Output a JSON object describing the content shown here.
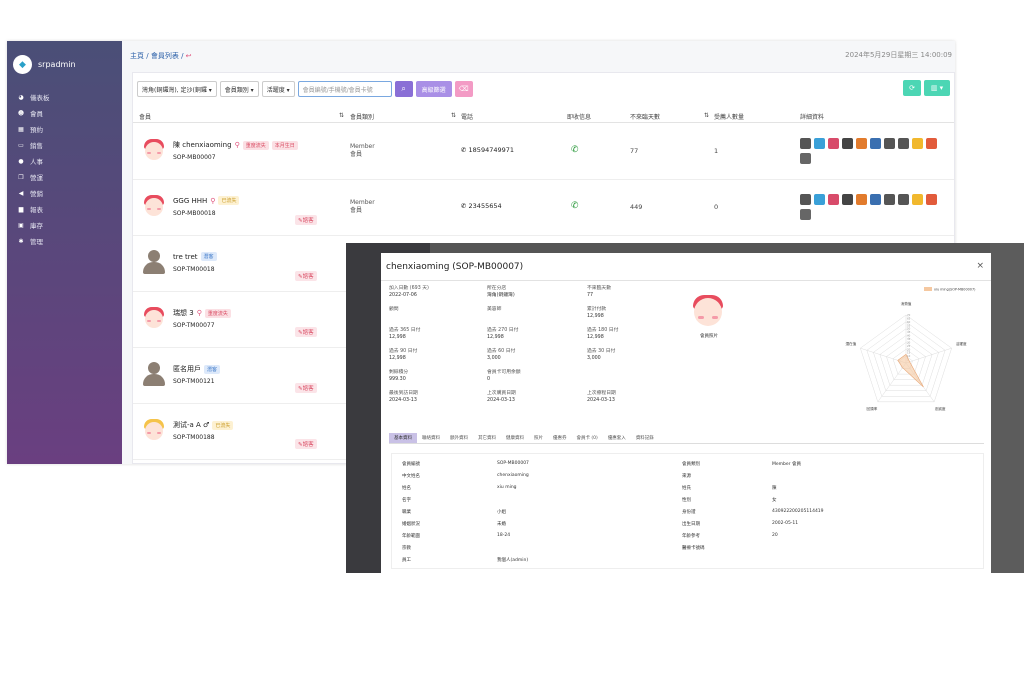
{
  "app": {
    "name": "srpadmin"
  },
  "sidebar": {
    "items": [
      {
        "label": "儀表板",
        "icon": "dashboard-icon"
      },
      {
        "label": "會員",
        "icon": "users-icon"
      },
      {
        "label": "預約",
        "icon": "calendar-icon"
      },
      {
        "label": "銷售",
        "icon": "card-icon"
      },
      {
        "label": "人事",
        "icon": "person-icon"
      },
      {
        "label": "營運",
        "icon": "copy-icon"
      },
      {
        "label": "營銷",
        "icon": "megaphone-icon"
      },
      {
        "label": "報表",
        "icon": "chart-icon"
      },
      {
        "label": "庫存",
        "icon": "box-icon"
      },
      {
        "label": "管理",
        "icon": "gear-icon"
      }
    ]
  },
  "breadcrumb": {
    "home": "主頁",
    "sep1": "/",
    "page": "會員列表",
    "sep2": "/",
    "back_icon": "back-arrow-icon"
  },
  "datetime": "2024年5月29日星期三 14:00:09",
  "filters": {
    "branch": "灣角(銅鑼灣), 定沙(銅鑼 ▾",
    "type": "會員類別 ▾",
    "follow": "活躍度 ▾",
    "search_placeholder": "會員編號/手機號/會員卡號",
    "advanced": "高級篩選"
  },
  "table": {
    "headers": [
      "會員",
      "會員類別",
      "電話",
      "即收信息",
      "不來臨天數",
      "受薦人數量",
      "詳細資料"
    ]
  },
  "members": [
    {
      "name": "陳 chenxiaoming",
      "code": "SOP-MB00007",
      "avatar": "girl-red",
      "pin": true,
      "tags": [
        {
          "text": "重度流失",
          "c": "t-red"
        },
        {
          "text": "本月生日",
          "c": "t-red"
        }
      ],
      "type1": "Member",
      "type2": "會員",
      "phone": "18594749971",
      "days": "77",
      "ref": "1",
      "edit": "",
      "icons": true
    },
    {
      "name": "GGG HHH",
      "code": "SOP-MB00018",
      "avatar": "girl-red",
      "pin": true,
      "tags": [
        {
          "text": "已流失",
          "c": "t-yel"
        }
      ],
      "type1": "Member",
      "type2": "會員",
      "phone": "23455654",
      "days": "449",
      "ref": "0",
      "edit": "諮客",
      "icons": true
    },
    {
      "name": "tre tret",
      "code": "SOP-TM00018",
      "avatar": "grey",
      "pin": false,
      "tags": [
        {
          "text": "潛客",
          "c": "t-blue"
        }
      ],
      "type1": "",
      "type2": "",
      "phone": "",
      "days": "",
      "ref": "",
      "edit": "諮客",
      "icons": false
    },
    {
      "name": "瑞想 3",
      "code": "SOP-TM00077",
      "avatar": "girl-red",
      "pin": true,
      "tags": [
        {
          "text": "重度流失",
          "c": "t-red"
        }
      ],
      "type1": "",
      "type2": "",
      "phone": "",
      "days": "",
      "ref": "",
      "edit": "諮客",
      "icons": false
    },
    {
      "name": "匿名用戶",
      "code": "SOP-TM00121",
      "avatar": "grey",
      "pin": false,
      "tags": [
        {
          "text": "潛客",
          "c": "t-blue"
        }
      ],
      "type1": "",
      "type2": "",
      "phone": "",
      "days": "",
      "ref": "",
      "edit": "諮客",
      "icons": false
    },
    {
      "name": "測试-a A ♂",
      "code": "SOP-TM00188",
      "avatar": "boy-yellow",
      "pin": false,
      "tags": [
        {
          "text": "已流失",
          "c": "t-yel"
        }
      ],
      "type1": "",
      "type2": "",
      "phone": "",
      "days": "",
      "ref": "",
      "edit": "諮客",
      "icons": false
    }
  ],
  "modal": {
    "title": "chenxiaoming (SOP-MB00007)",
    "close": "×",
    "avatar_label": "會員照片",
    "stats": [
      [
        {
          "k": "加入日數 (693 天)",
          "v": "2022-07-06"
        },
        {
          "k": "所在分店",
          "v": "灣角(銅鑼灣)"
        },
        {
          "k": "不來臨天數",
          "v": "77"
        }
      ],
      [
        {
          "k": "顧問",
          "v": ""
        },
        {
          "k": "美容師",
          "v": ""
        },
        {
          "k": "累計付款",
          "v": "12,998"
        }
      ],
      [
        {
          "k": "過去 365 日付",
          "v": "12,998"
        },
        {
          "k": "過去 270 日付",
          "v": "12,998"
        },
        {
          "k": "過去 180 日付",
          "v": "12,998"
        }
      ],
      [
        {
          "k": "過去 90 日付",
          "v": "12,998"
        },
        {
          "k": "過去 60 日付",
          "v": "3,000"
        },
        {
          "k": "過去 30 日付",
          "v": "3,000"
        }
      ],
      [
        {
          "k": "剩餘積分",
          "v": "999.30"
        },
        {
          "k": "會員卡可用余額",
          "v": "0"
        },
        {
          "k": "",
          "v": ""
        }
      ],
      [
        {
          "k": "最後到訪日期",
          "v": "2024-03-13"
        },
        {
          "k": "上次購買日期",
          "v": "2024-03-13"
        },
        {
          "k": "上次療程日期",
          "v": "2024-03-13"
        }
      ]
    ],
    "tabs": [
      "基本資料",
      "聯絡資料",
      "額外資料",
      "其它資料",
      "健康資料",
      "照片",
      "優惠券",
      "會員卡 (0)",
      "優惠套入",
      "資料記錄"
    ],
    "details": [
      [
        "會員編號",
        "SOP-MB00007",
        "會員類別",
        "Member 會員"
      ],
      [
        "中文姓名",
        "chenxiaoming",
        "來源",
        ""
      ],
      [
        "姓名",
        "xiu ming",
        "姓氏",
        "陳"
      ],
      [
        "名字",
        "",
        "性別",
        "女"
      ],
      [
        "職業",
        "小姐",
        "身份證",
        "430922200205114419"
      ],
      [
        "婚姻狀況",
        "未婚",
        "出生日期",
        "2002-05-11"
      ],
      [
        "年齡範圍",
        "18-24",
        "年齡參考",
        "20"
      ],
      [
        "宗教",
        "",
        "醫療卡號碼",
        ""
      ],
      [
        "員工",
        "我個人(admin)",
        "",
        ""
      ]
    ],
    "radar_legend": "xiu ming(SOP-MB00007)",
    "radar_labels": [
      "消費值",
      "活躍度",
      "忠誠度",
      "回頭率",
      "潛在值"
    ],
    "radar_ticks": [
      "70",
      "65",
      "60",
      "55",
      "50",
      "45",
      "40",
      "35",
      "30",
      "25",
      "20",
      "15",
      "10",
      "5"
    ]
  },
  "colors": {
    "sidebar_top": "#4a4f77",
    "sidebar_bottom": "#6a3f80",
    "accent": "#8a6fd6",
    "teal": "#4cd6b4",
    "pink": "#e0507a"
  }
}
